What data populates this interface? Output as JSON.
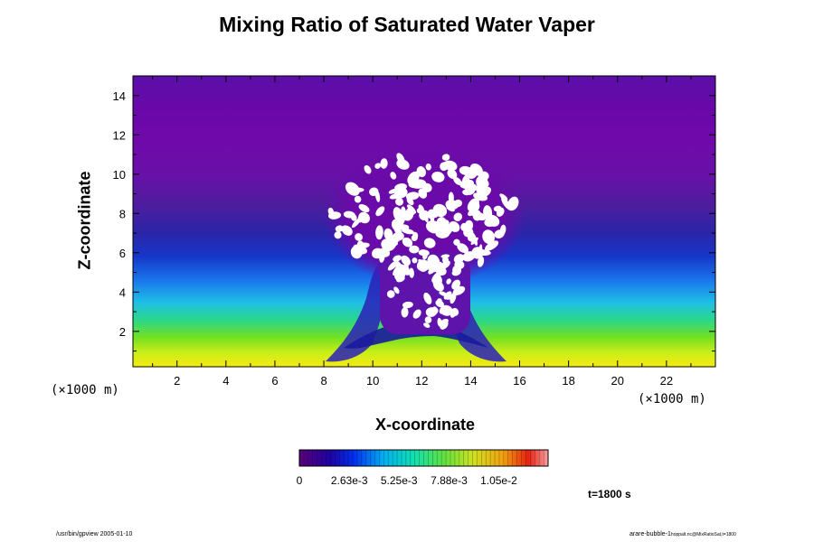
{
  "chart_data": {
    "type": "heatmap",
    "title": "Mixing Ratio of Saturated Water Vaper",
    "xlabel": "X-coordinate",
    "ylabel": "Z-coordinate",
    "x_unit": "(×1000 m)",
    "z_unit": "(×1000 m)",
    "xlim": [
      0.2,
      24.0
    ],
    "ylim": [
      0.2,
      15.0
    ],
    "x_ticks": [
      2,
      4,
      6,
      8,
      10,
      12,
      14,
      16,
      18,
      20,
      22
    ],
    "y_ticks": [
      2,
      4,
      6,
      8,
      10,
      12,
      14
    ],
    "grid": false,
    "colorbar": {
      "min": 0,
      "max": 0.0131,
      "tick_values": [
        0,
        0.00263,
        0.00525,
        0.00788,
        0.0105
      ],
      "tick_labels": [
        "0",
        "2.63e-3",
        "5.25e-3",
        "7.88e-3",
        "1.05e-2"
      ],
      "placement": "bottom"
    },
    "time_label": "t=1800 s",
    "field_description_levels": [
      {
        "z": 0.5,
        "value": 0.0105
      },
      {
        "z": 1.5,
        "value": 0.0078
      },
      {
        "z": 2.5,
        "value": 0.005
      },
      {
        "z": 4.0,
        "value": 0.003
      },
      {
        "z": 6.0,
        "value": 0.0013
      },
      {
        "z": 8.0,
        "value": 0.0006
      },
      {
        "z": 11.0,
        "value": 0.0003
      },
      {
        "z": 15.0,
        "value": 0.0004
      }
    ]
  },
  "footer": {
    "left": "/usr/bin/gpview 2005-01-10",
    "right_main": "arare-bubble-1",
    "right_sub": "hoppalt.nc@MixRatioSat,t=1800"
  }
}
